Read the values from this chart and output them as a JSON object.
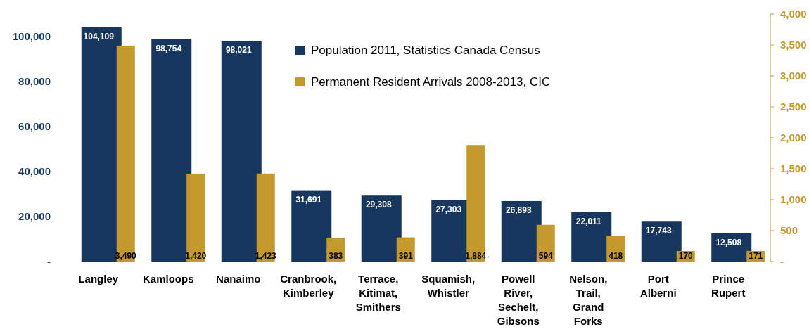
{
  "chart_data": {
    "type": "bar",
    "categories": [
      "Langley",
      "Kamloops",
      "Nanaimo",
      "Cranbrook, Kimberley",
      "Terrace, Kitimat, Smithers",
      "Squamish, Whistler",
      "Powell River, Sechelt, Gibsons",
      "Nelson, Trail, Grand Forks",
      "Port Alberni",
      "Prince Rupert"
    ],
    "series": [
      {
        "name": "Population 2011, Statistics Canada Census",
        "color": "#17375e",
        "values": [
          104109,
          98754,
          98021,
          31691,
          29308,
          27303,
          26893,
          22011,
          17743,
          12508
        ],
        "value_labels": [
          "104,109",
          "98,754",
          "98,021",
          "31,691",
          "29,308",
          "27,303",
          "26,893",
          "22,011",
          "17,743",
          "12,508"
        ]
      },
      {
        "name": "Permanent Resident Arrivals 2008-2013, CIC",
        "color": "#c4992e",
        "axis": "y2",
        "values": [
          3490,
          1420,
          1423,
          383,
          391,
          1884,
          594,
          418,
          170,
          171
        ],
        "value_labels": [
          "3,490",
          "1,420",
          "1,423",
          "383",
          "391",
          "1,884",
          "594",
          "418",
          "170",
          "171"
        ]
      }
    ],
    "ylim": [
      0,
      110000
    ],
    "yticks": [
      {
        "value": 0,
        "label": "-"
      },
      {
        "value": 20000,
        "label": "20,000"
      },
      {
        "value": 40000,
        "label": "40,000"
      },
      {
        "value": 60000,
        "label": "60,000"
      },
      {
        "value": 80000,
        "label": "80,000"
      },
      {
        "value": 100000,
        "label": "100,000"
      }
    ],
    "y2lim": [
      0,
      4000
    ],
    "y2ticks": [
      {
        "value": 0,
        "label": "-"
      },
      {
        "value": 500,
        "label": "500"
      },
      {
        "value": 1000,
        "label": "1,000"
      },
      {
        "value": 1500,
        "label": "1,500"
      },
      {
        "value": 2000,
        "label": "2,000"
      },
      {
        "value": 2500,
        "label": "2,500"
      },
      {
        "value": 3000,
        "label": "3,000"
      },
      {
        "value": 3500,
        "label": "3,500"
      },
      {
        "value": 4000,
        "label": "4,000"
      }
    ],
    "legend": "top",
    "grid": false
  }
}
